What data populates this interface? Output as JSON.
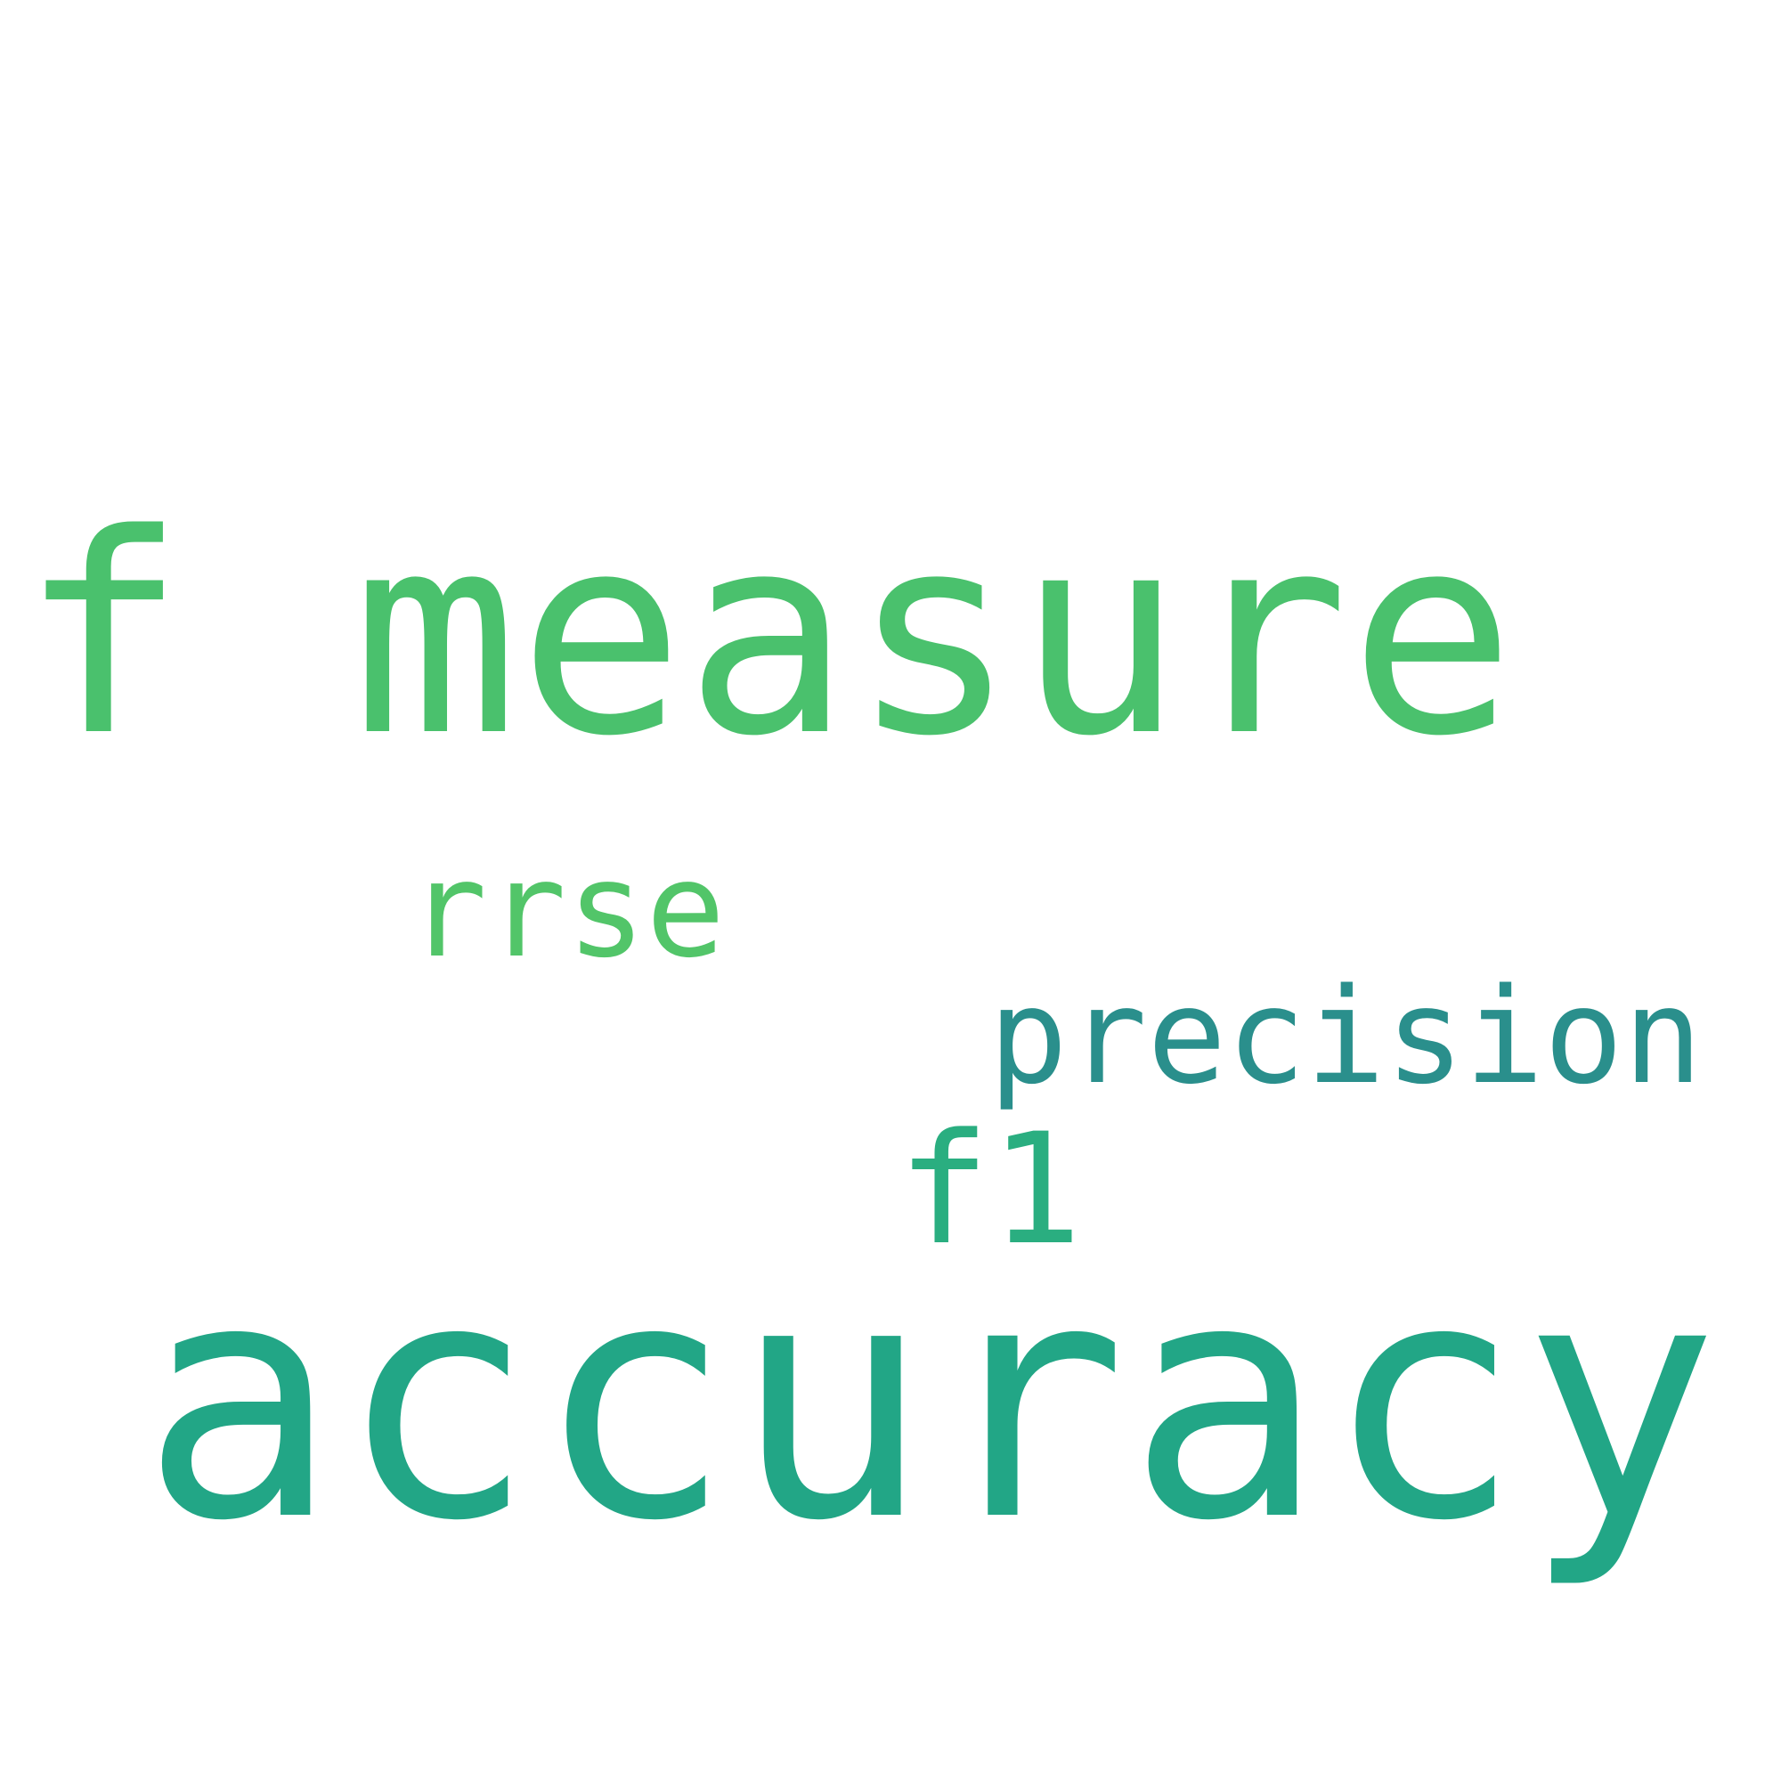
{
  "words": [
    {
      "id": "w-f-measure",
      "text": "f measure",
      "color": "#4ac16d"
    },
    {
      "id": "w-rrse",
      "text": "rrse",
      "color": "#52c569"
    },
    {
      "id": "w-precision",
      "text": "precision",
      "color": "#2a8f8c"
    },
    {
      "id": "w-f1",
      "text": "f1",
      "color": "#2aae80"
    },
    {
      "id": "w-accuracy",
      "text": "accuracy",
      "color": "#22a686"
    }
  ]
}
